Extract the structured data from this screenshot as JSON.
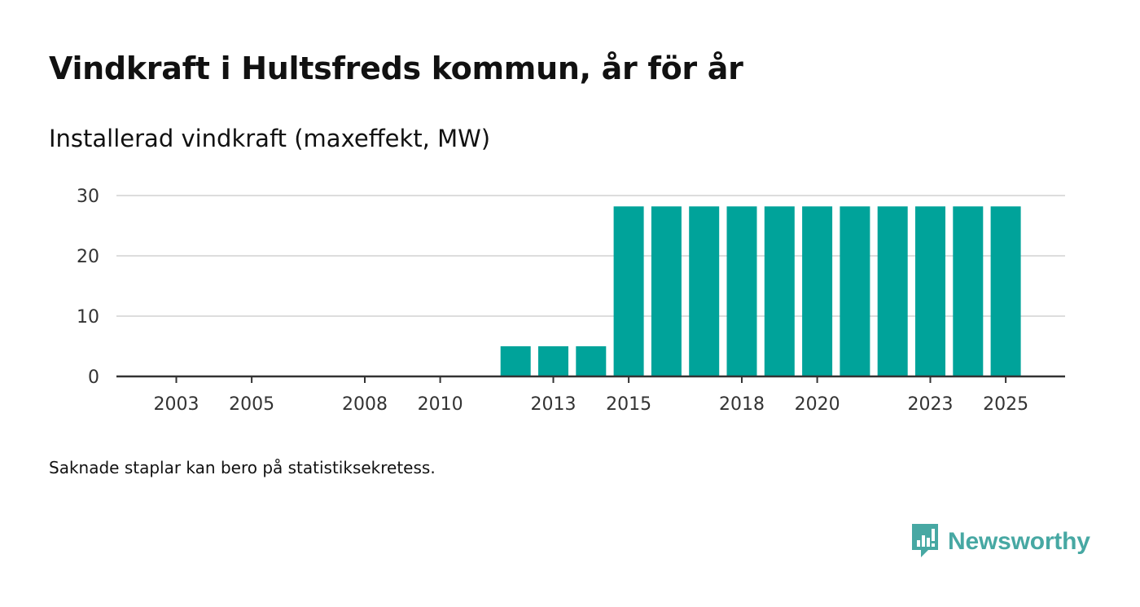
{
  "title": "Vindkraft i Hultsfreds kommun, år för år",
  "subtitle": "Installerad vindkraft (maxeffekt, MW)",
  "footnote": "Saknade staplar kan bero på statistiksekretess.",
  "brand": {
    "name": "Newsworthy",
    "icon": "newsworthy-logo-icon",
    "color": "#47a8a3"
  },
  "chart_data": {
    "type": "bar",
    "title": "Vindkraft i Hultsfreds kommun, år för år",
    "ylabel": "Installerad vindkraft (maxeffekt, MW)",
    "xlabel": "",
    "ylim": [
      0,
      30
    ],
    "yticks": [
      0,
      10,
      20,
      30
    ],
    "xticks": [
      "2003",
      "2005",
      "2008",
      "2010",
      "2013",
      "2015",
      "2018",
      "2020",
      "2023",
      "2025"
    ],
    "grid": true,
    "bar_color": "#00a39a",
    "categories": [
      "2003",
      "2004",
      "2005",
      "2006",
      "2007",
      "2008",
      "2009",
      "2010",
      "2011",
      "2012",
      "2013",
      "2014",
      "2015",
      "2016",
      "2017",
      "2018",
      "2019",
      "2020",
      "2021",
      "2022",
      "2023",
      "2024",
      "2025"
    ],
    "values": [
      0,
      0,
      0,
      0,
      0,
      0,
      0,
      0,
      0,
      5,
      5,
      5,
      28.2,
      28.2,
      28.2,
      28.2,
      28.2,
      28.2,
      28.2,
      28.2,
      28.2,
      28.2,
      28.2
    ]
  }
}
